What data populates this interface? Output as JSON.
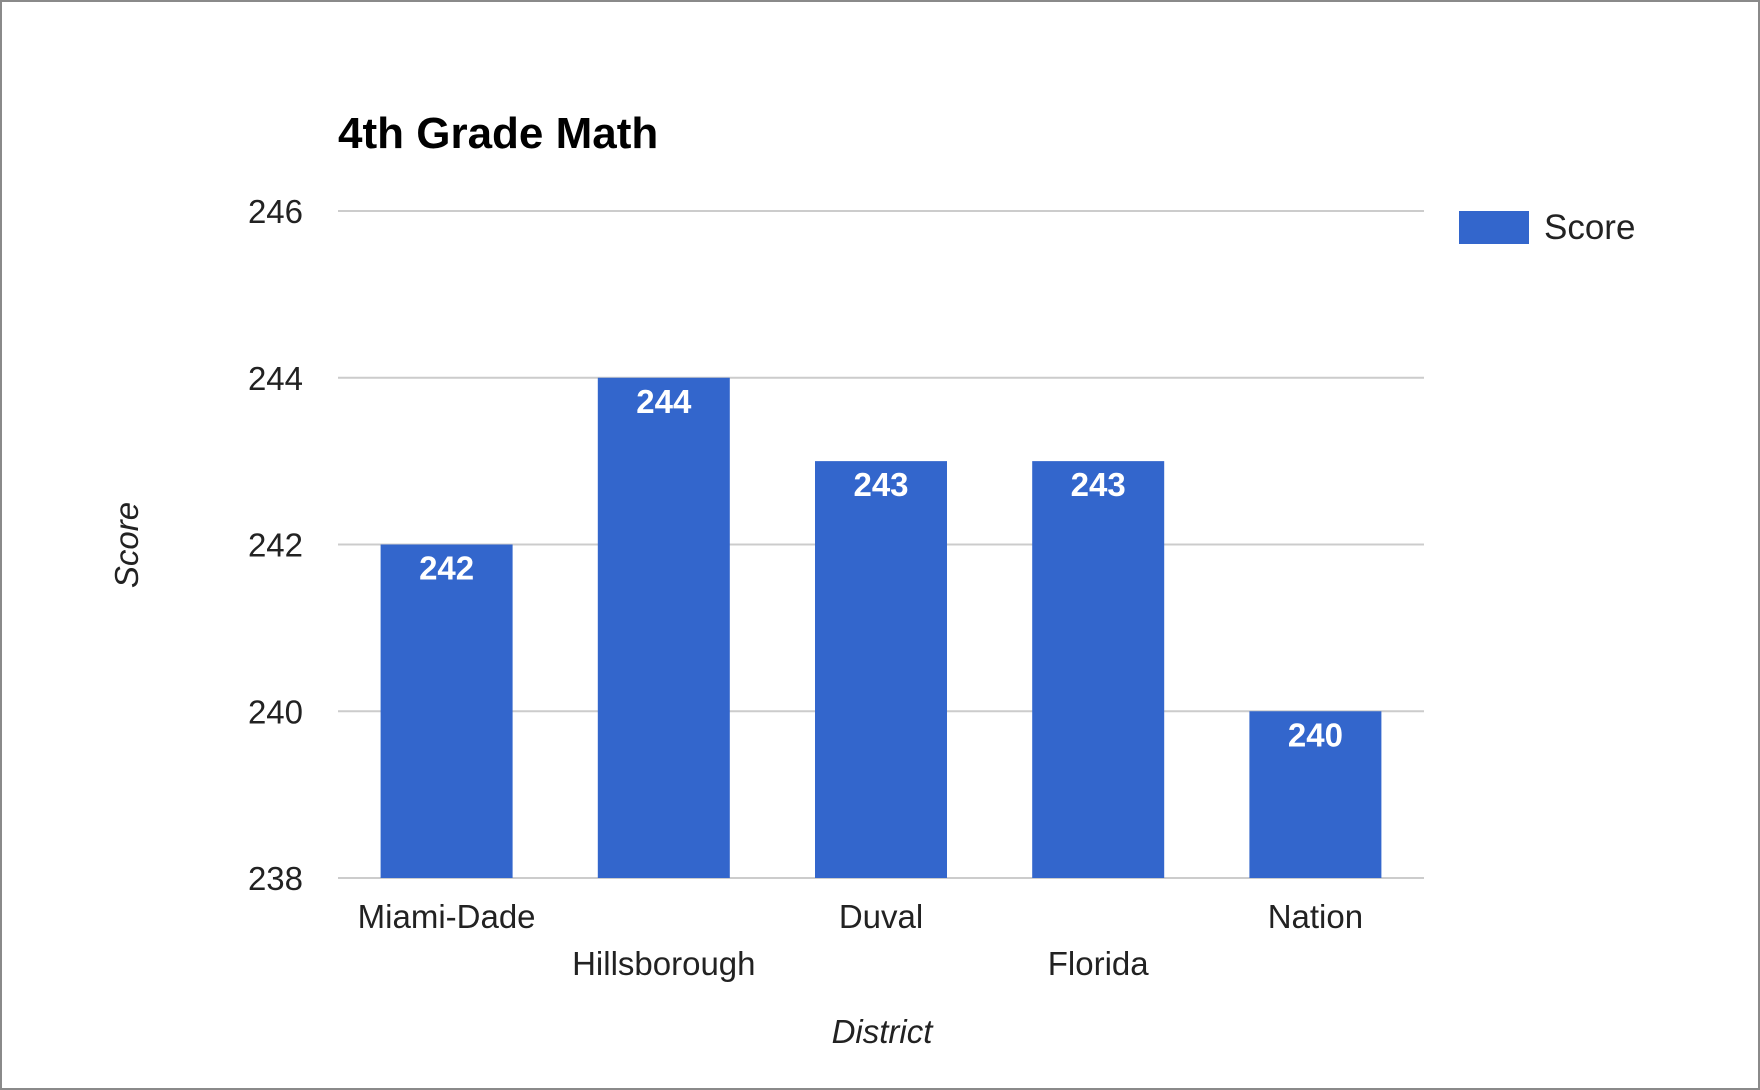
{
  "chart_data": {
    "type": "bar",
    "title": "4th Grade Math",
    "xlabel": "District",
    "ylabel": "Score",
    "categories": [
      "Miami-Dade",
      "Hillsborough",
      "Duval",
      "Florida",
      "Nation"
    ],
    "series": [
      {
        "name": "Score",
        "values": [
          242,
          244,
          243,
          243,
          240
        ],
        "color": "#3366cc"
      }
    ],
    "data_labels": [
      "242",
      "244",
      "243",
      "243",
      "240"
    ],
    "ylim": [
      238,
      246
    ],
    "yticks": [
      238,
      240,
      242,
      244,
      246
    ],
    "ytick_labels": [
      "238",
      "240",
      "242",
      "244",
      "246"
    ],
    "grid": true,
    "legend_position": "right",
    "colors": {
      "bar": "#3366cc",
      "grid": "#cccccc"
    }
  }
}
